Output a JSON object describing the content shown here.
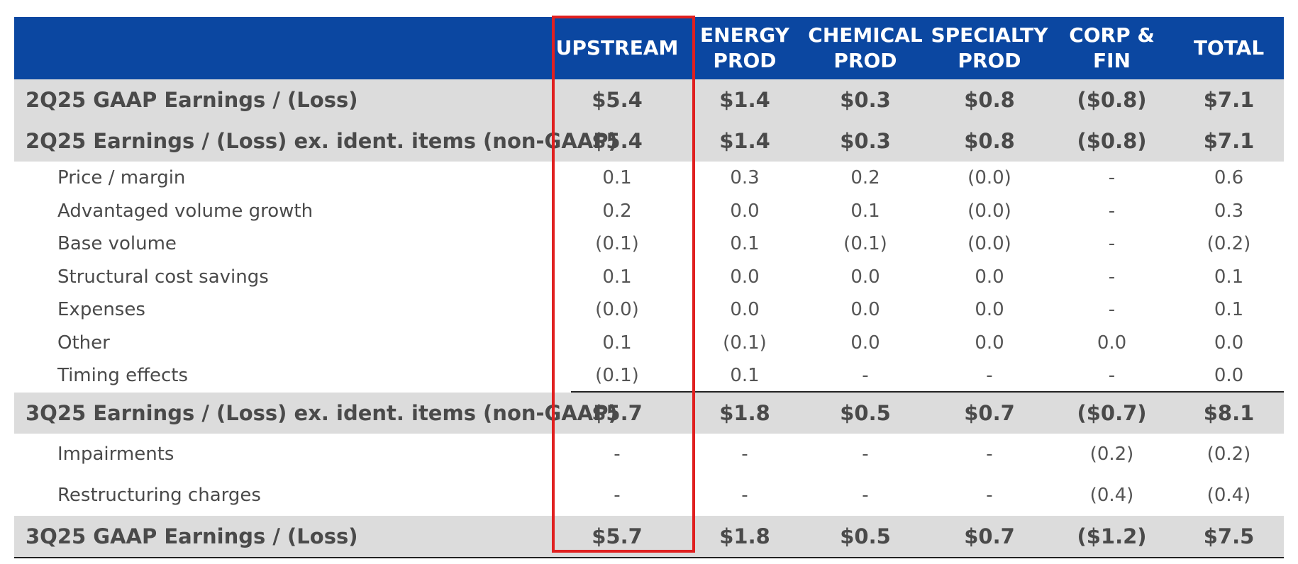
{
  "columns": [
    "UPSTREAM",
    "ENERGY\nPROD",
    "CHEMICAL\nPROD",
    "SPECIALTY\nPROD",
    "CORP &\nFIN",
    "TOTAL"
  ],
  "headers": {
    "upstream": "UPSTREAM",
    "energy_l1": "ENERGY",
    "energy_l2": "PROD",
    "chemical_l1": "CHEMICAL",
    "chemical_l2": "PROD",
    "specialty_l1": "SPECIALTY",
    "specialty_l2": "PROD",
    "corp_l1": "CORP &",
    "corp_l2": "FIN",
    "total": "TOTAL"
  },
  "rows": [
    {
      "label": "2Q25 GAAP Earnings / (Loss)",
      "values": [
        "$5.4",
        "$1.4",
        "$0.3",
        "$0.8",
        "($0.8)",
        "$7.1"
      ]
    },
    {
      "label": "2Q25 Earnings / (Loss) ex. ident. items (non-GAAP)",
      "values": [
        "$5.4",
        "$1.4",
        "$0.3",
        "$0.8",
        "($0.8)",
        "$7.1"
      ]
    },
    {
      "label": "Price / margin",
      "values": [
        "0.1",
        "0.3",
        "0.2",
        "(0.0)",
        "-",
        "0.6"
      ]
    },
    {
      "label": "Advantaged volume growth",
      "values": [
        "0.2",
        "0.0",
        "0.1",
        "(0.0)",
        "-",
        "0.3"
      ]
    },
    {
      "label": "Base volume",
      "values": [
        "(0.1)",
        "0.1",
        "(0.1)",
        "(0.0)",
        "-",
        "(0.2)"
      ]
    },
    {
      "label": "Structural cost savings",
      "values": [
        "0.1",
        "0.0",
        "0.0",
        "0.0",
        "-",
        "0.1"
      ]
    },
    {
      "label": "Expenses",
      "values": [
        "(0.0)",
        "0.0",
        "0.0",
        "0.0",
        "-",
        "0.1"
      ]
    },
    {
      "label": "Other",
      "values": [
        "0.1",
        "(0.1)",
        "0.0",
        "0.0",
        "0.0",
        "0.0"
      ]
    },
    {
      "label": "Timing effects",
      "values": [
        "(0.1)",
        "0.1",
        "-",
        "-",
        "-",
        "0.0"
      ]
    },
    {
      "label": "3Q25 Earnings / (Loss) ex. ident. items (non-GAAP)",
      "values": [
        "$5.7",
        "$1.8",
        "$0.5",
        "$0.7",
        "($0.7)",
        "$8.1"
      ]
    },
    {
      "label": "Impairments",
      "values": [
        "-",
        "-",
        "-",
        "-",
        "(0.2)",
        "(0.2)"
      ]
    },
    {
      "label": "Restructuring charges",
      "values": [
        "-",
        "-",
        "-",
        "-",
        "(0.4)",
        "(0.4)"
      ]
    },
    {
      "label": "3Q25 GAAP Earnings / (Loss)",
      "values": [
        "$5.7",
        "$1.8",
        "$0.5",
        "$0.7",
        "($1.2)",
        "$7.5"
      ]
    }
  ]
}
